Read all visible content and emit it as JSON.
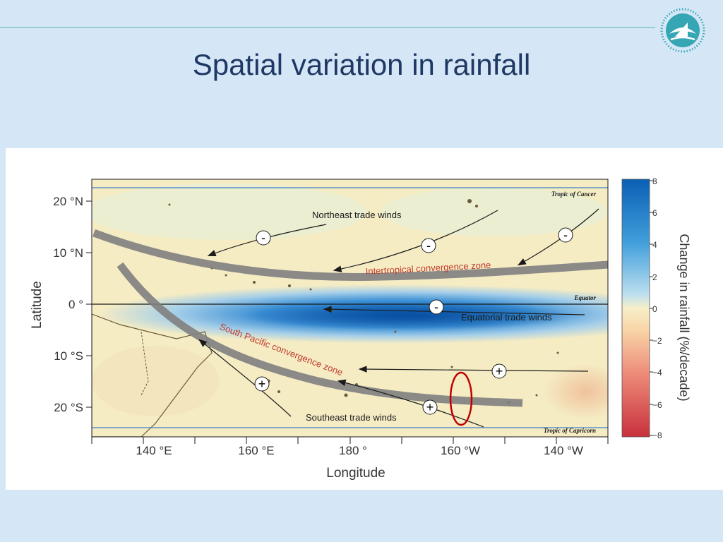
{
  "slide": {
    "title": "Spatial variation in rainfall",
    "logo_icon": "sprep-wave-logo-icon"
  },
  "chart_data": {
    "type": "heatmap",
    "title": "",
    "xlabel": "Longitude",
    "ylabel": "Latitude",
    "x_ticks": [
      "140 °E",
      "160 °E",
      "180 °",
      "160 °W",
      "140 °W"
    ],
    "y_ticks": [
      "20 °N",
      "10 °N",
      "0 °",
      "10 °S",
      "20 °S"
    ],
    "colorbar": {
      "label": "Change in rainfall (%/decade)",
      "ticks": [
        "8",
        "6",
        "4",
        "2",
        "0",
        "−2",
        "−4",
        "−6",
        "−8"
      ],
      "range": [
        -8,
        8
      ]
    },
    "reference_lines": [
      "Tropic of Cancer",
      "Equator",
      "Tropic of Capricorn"
    ],
    "convergence_zones": [
      "Intertropical convergence zone",
      "South Pacific convergence zone"
    ],
    "wind_labels": [
      "Northeast trade winds",
      "Equatorial trade winds",
      "Southeast trade winds"
    ],
    "wind_signs": [
      "-",
      "-",
      "-",
      "-",
      "+",
      "+",
      "+"
    ],
    "highlight": "red-ellipse",
    "colors": {
      "max_wet": "#0a5fb4",
      "neutral": "#f5ecc4",
      "max_dry": "#c8303c",
      "zone_band": "#7f7f7f",
      "zone_label": "#c0392b",
      "highlight": "#c00000"
    }
  }
}
